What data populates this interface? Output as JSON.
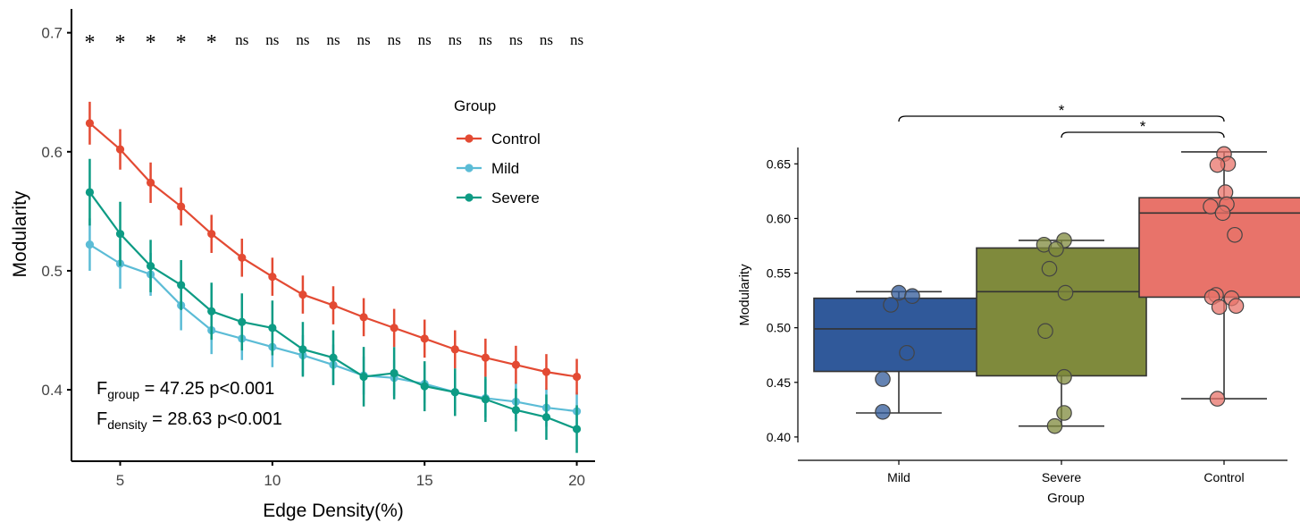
{
  "chart_data": [
    {
      "type": "line",
      "xlabel": "Edge Density(%)",
      "ylabel": "Modularity",
      "xlim": [
        3.4,
        20.6
      ],
      "ylim": [
        0.34,
        0.72
      ],
      "x_ticks": [
        5,
        10,
        15,
        20
      ],
      "y_ticks": [
        0.4,
        0.5,
        0.6,
        0.7
      ],
      "x": [
        4,
        5,
        6,
        7,
        8,
        9,
        10,
        11,
        12,
        13,
        14,
        15,
        16,
        17,
        18,
        19,
        20
      ],
      "legend": {
        "title": "Group",
        "position": "right"
      },
      "series": [
        {
          "name": "Control",
          "color": "#e34a33",
          "values": [
            0.624,
            0.602,
            0.574,
            0.554,
            0.531,
            0.511,
            0.495,
            0.48,
            0.471,
            0.461,
            0.452,
            0.443,
            0.434,
            0.427,
            0.421,
            0.415,
            0.411
          ],
          "error": [
            0.018,
            0.017,
            0.017,
            0.016,
            0.016,
            0.016,
            0.016,
            0.016,
            0.016,
            0.016,
            0.016,
            0.016,
            0.016,
            0.016,
            0.016,
            0.015,
            0.015
          ]
        },
        {
          "name": "Mild",
          "color": "#5bbcd6",
          "values": [
            0.522,
            0.506,
            0.497,
            0.471,
            0.45,
            0.443,
            0.436,
            0.429,
            0.421,
            0.412,
            0.41,
            0.405,
            0.398,
            0.393,
            0.39,
            0.385,
            0.382
          ],
          "error": [
            0.022,
            0.021,
            0.018,
            0.021,
            0.02,
            0.018,
            0.017,
            0.017,
            0.017,
            0.016,
            0.015,
            0.016,
            0.016,
            0.016,
            0.016,
            0.016,
            0.016
          ]
        },
        {
          "name": "Severe",
          "color": "#0d9b84",
          "values": [
            0.566,
            0.531,
            0.504,
            0.488,
            0.466,
            0.457,
            0.452,
            0.434,
            0.427,
            0.411,
            0.414,
            0.403,
            0.398,
            0.392,
            0.383,
            0.377,
            0.367
          ],
          "error": [
            0.028,
            0.027,
            0.022,
            0.021,
            0.024,
            0.024,
            0.023,
            0.023,
            0.023,
            0.025,
            0.022,
            0.021,
            0.02,
            0.019,
            0.018,
            0.019,
            0.02
          ]
        }
      ],
      "significance": [
        "*",
        "*",
        "*",
        "*",
        "*",
        "ns",
        "ns",
        "ns",
        "ns",
        "ns",
        "ns",
        "ns",
        "ns",
        "ns",
        "ns",
        "ns",
        "ns"
      ],
      "annotations": [
        {
          "main": "F",
          "sub": "group",
          "rest": " = 47.25 p<0.001"
        },
        {
          "main": "F",
          "sub": "density",
          "rest": " = 28.63 p<0.001"
        }
      ]
    },
    {
      "type": "box",
      "xlabel": "Group",
      "ylabel": "Modularity",
      "ylim": [
        0.395,
        0.665
      ],
      "y_ticks": [
        "0.40",
        "0.45",
        "0.50",
        "0.55",
        "0.60",
        "0.65"
      ],
      "categories": [
        "Mild",
        "Severe",
        "Control"
      ],
      "boxes": [
        {
          "name": "Mild",
          "color": "#30599a",
          "min": 0.422,
          "q1": 0.46,
          "median": 0.499,
          "q3": 0.527,
          "max": 0.533,
          "points": [
            0.532,
            0.529,
            0.521,
            0.477,
            0.453,
            0.423
          ]
        },
        {
          "name": "Severe",
          "color": "#7f8a3c",
          "min": 0.41,
          "q1": 0.456,
          "median": 0.533,
          "q3": 0.573,
          "max": 0.58,
          "points": [
            0.58,
            0.576,
            0.572,
            0.554,
            0.532,
            0.497,
            0.455,
            0.422,
            0.41
          ]
        },
        {
          "name": "Control",
          "color": "#e8736a",
          "min": 0.435,
          "q1": 0.528,
          "median": 0.605,
          "q3": 0.619,
          "max": 0.661,
          "points": [
            0.659,
            0.65,
            0.649,
            0.624,
            0.613,
            0.611,
            0.605,
            0.585,
            0.53,
            0.528,
            0.527,
            0.52,
            0.519,
            0.435
          ]
        }
      ],
      "comparisons": [
        {
          "from": "Mild",
          "to": "Control",
          "label": "*"
        },
        {
          "from": "Severe",
          "to": "Control",
          "label": "*"
        }
      ]
    }
  ]
}
